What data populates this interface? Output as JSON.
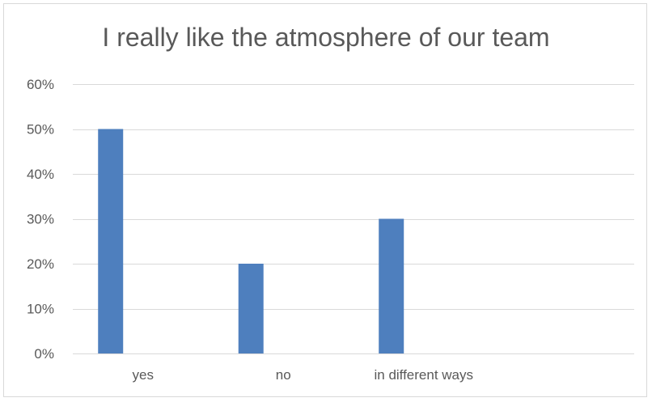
{
  "chart_data": {
    "type": "bar",
    "title": "I really like the atmosphere of our team",
    "categories": [
      "yes",
      "no",
      "in different ways",
      ""
    ],
    "values": [
      0.5,
      0.2,
      0.3,
      null
    ],
    "ylim": [
      0,
      0.6
    ],
    "yticks": [
      0,
      0.1,
      0.2,
      0.3,
      0.4,
      0.5,
      0.6
    ],
    "ytick_labels": [
      "0%",
      "10%",
      "20%",
      "30%",
      "40%",
      "50%",
      "60%"
    ],
    "grid": true,
    "legend": "none",
    "xlabel": "",
    "ylabel": ""
  },
  "colors": {
    "bar": "#4e7fbe",
    "grid": "#d9d9d9",
    "text": "#595959"
  }
}
